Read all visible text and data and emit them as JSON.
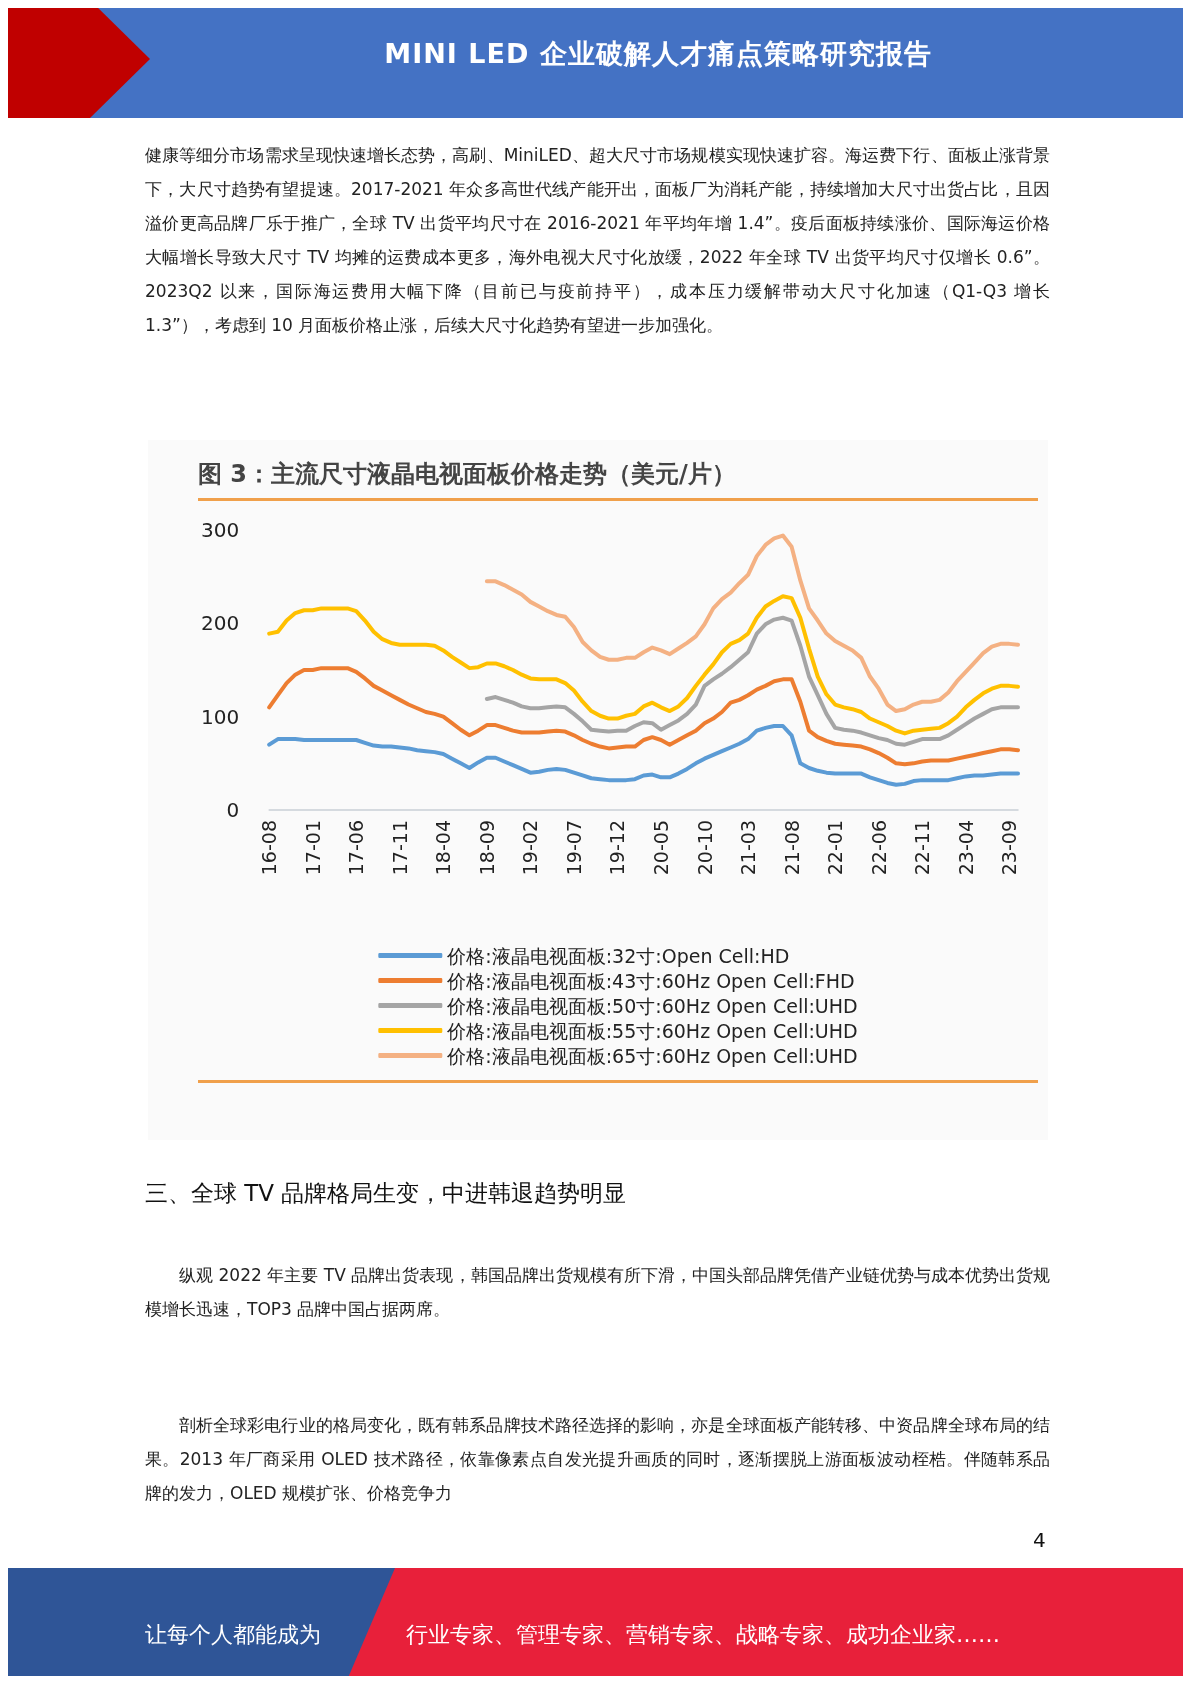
{
  "chart_data": {
    "type": "line",
    "title": "图 3：主流尺寸液晶电视面板价格走势（美元/片）",
    "categories": [
      "16-08",
      null,
      null,
      null,
      null,
      "17-01",
      null,
      null,
      null,
      null,
      "17-06",
      null,
      null,
      null,
      null,
      "17-11",
      null,
      null,
      null,
      null,
      "18-04",
      null,
      null,
      null,
      null,
      "18-09",
      null,
      null,
      null,
      null,
      "19-02",
      null,
      null,
      null,
      null,
      "19-07",
      null,
      null,
      null,
      null,
      "19-12",
      null,
      null,
      null,
      null,
      "20-05",
      null,
      null,
      null,
      null,
      "20-10",
      null,
      null,
      null,
      null,
      "21-03",
      null,
      null,
      null,
      null,
      "21-08",
      null,
      null,
      null,
      null,
      "22-01",
      null,
      null,
      null,
      null,
      "22-06",
      null,
      null,
      null,
      null,
      "22-11",
      null,
      null,
      null,
      null,
      "23-04",
      null,
      null,
      null,
      null,
      "23-09",
      null
    ],
    "series": [
      {
        "name": "价格:液晶电视面板:32寸:Open Cell:HD",
        "color": "#5b9bd5",
        "values": [
          70,
          76,
          76,
          76,
          75,
          75,
          75,
          75,
          75,
          75,
          75,
          72,
          69,
          68,
          68,
          67,
          66,
          64,
          63,
          62,
          60,
          55,
          50,
          45,
          51,
          56,
          56,
          52,
          48,
          44,
          40,
          41,
          43,
          44,
          43,
          40,
          37,
          34,
          33,
          32,
          32,
          32,
          33,
          37,
          38,
          35,
          35,
          39,
          44,
          50,
          55,
          59,
          63,
          67,
          71,
          76,
          85,
          88,
          90,
          90,
          80,
          50,
          45,
          42,
          40,
          39,
          39,
          39,
          39,
          35,
          32,
          29,
          27,
          28,
          31,
          32,
          32,
          32,
          32,
          34,
          36,
          37,
          37,
          38,
          39,
          39,
          39
        ]
      },
      {
        "name": "价格:液晶电视面板:43寸:60Hz Open Cell:FHD",
        "color": "#ed7d31",
        "values": [
          110,
          123,
          136,
          145,
          150,
          150,
          152,
          152,
          152,
          152,
          148,
          141,
          133,
          128,
          123,
          118,
          113,
          109,
          105,
          103,
          100,
          93,
          86,
          80,
          85,
          91,
          91,
          88,
          85,
          83,
          83,
          83,
          84,
          85,
          84,
          80,
          75,
          71,
          68,
          66,
          67,
          68,
          68,
          75,
          78,
          75,
          70,
          75,
          80,
          85,
          93,
          98,
          105,
          115,
          118,
          123,
          129,
          133,
          138,
          140,
          140,
          116,
          85,
          78,
          74,
          71,
          70,
          69,
          68,
          65,
          61,
          56,
          50,
          49,
          50,
          52,
          53,
          53,
          53,
          55,
          57,
          59,
          61,
          63,
          65,
          65,
          64
        ]
      },
      {
        "name": "价格:液晶电视面板:50寸:60Hz Open Cell:UHD",
        "color": "#a5a5a5",
        "values": [
          null,
          null,
          null,
          null,
          null,
          null,
          null,
          null,
          null,
          null,
          null,
          null,
          null,
          null,
          null,
          null,
          null,
          null,
          null,
          null,
          null,
          null,
          null,
          null,
          null,
          119,
          121,
          118,
          115,
          111,
          109,
          109,
          110,
          111,
          110,
          103,
          95,
          86,
          85,
          84,
          85,
          85,
          90,
          94,
          93,
          86,
          91,
          96,
          103,
          113,
          133,
          140,
          146,
          153,
          161,
          169,
          189,
          199,
          204,
          206,
          203,
          176,
          143,
          123,
          103,
          88,
          86,
          85,
          83,
          80,
          77,
          75,
          71,
          70,
          73,
          76,
          76,
          76,
          80,
          86,
          92,
          98,
          103,
          108,
          110,
          110,
          110
        ]
      },
      {
        "name": "价格:液晶电视面板:55寸:60Hz Open Cell:UHD",
        "color": "#ffc000",
        "values": [
          189,
          191,
          203,
          211,
          214,
          214,
          216,
          216,
          216,
          216,
          213,
          203,
          191,
          183,
          179,
          177,
          177,
          177,
          177,
          176,
          171,
          164,
          158,
          152,
          153,
          157,
          157,
          154,
          150,
          145,
          141,
          140,
          140,
          140,
          136,
          128,
          116,
          106,
          101,
          98,
          98,
          101,
          103,
          111,
          115,
          110,
          106,
          111,
          120,
          133,
          145,
          156,
          169,
          178,
          182,
          189,
          206,
          218,
          224,
          229,
          227,
          206,
          173,
          143,
          124,
          113,
          110,
          108,
          105,
          98,
          94,
          90,
          85,
          82,
          85,
          86,
          87,
          88,
          93,
          100,
          110,
          118,
          125,
          130,
          133,
          133,
          132
        ]
      },
      {
        "name": "价格:液晶电视面板:65寸:60Hz Open Cell:UHD",
        "color": "#f4b183",
        "values": [
          null,
          null,
          null,
          null,
          null,
          null,
          null,
          null,
          null,
          null,
          null,
          null,
          null,
          null,
          null,
          null,
          null,
          null,
          null,
          null,
          null,
          null,
          null,
          null,
          null,
          245,
          245,
          241,
          236,
          231,
          223,
          218,
          213,
          209,
          207,
          196,
          180,
          171,
          164,
          161,
          161,
          163,
          163,
          169,
          174,
          171,
          167,
          173,
          179,
          186,
          199,
          216,
          226,
          233,
          243,
          252,
          272,
          284,
          291,
          294,
          282,
          246,
          216,
          203,
          189,
          181,
          176,
          171,
          163,
          143,
          130,
          113,
          106,
          108,
          113,
          116,
          116,
          118,
          126,
          138,
          148,
          158,
          168,
          175,
          178,
          178,
          177
        ]
      }
    ],
    "ylim": [
      0,
      300
    ],
    "yticks": [
      0,
      100,
      200,
      300
    ],
    "grid": false,
    "legend": "bottom",
    "marker": "none",
    "line_style": "solid",
    "annotations": [
      "MINI LED 企业破解人才痛点策略研究报告",
      "健康等细分市场需求呈现快速增长态势，高刷、MiniLED、超大尺寸市场规模实现快速扩容。海运费下行、面板止涨背景下，大尺寸趋势有望提速。2017-2021 年众多高世代线产能开出，面板厂为消耗产能，持续增加大尺寸出货占比，且因溢价更高品牌厂乐于推广，全球 TV 出货平均尺寸在 2016-2021 年平均年增 1.4”。疫后面板持续涨价、国际海运价格大幅增长导致大尺寸 TV 均摊的运费成本更多，海外电视大尺寸化放缓，2022 年全球 TV 出货平均尺寸仅增长 0.6”。2023Q2 以来，国际海运费用大幅下降（目前已与疫前持平），成本压力缓解带动大尺寸化加速（Q1-Q3 增长 1.3”），考虑到 10 月面板价格止涨，后续大尺寸化趋势有望进一步加强化。",
      "三、全球 TV 品牌格局生变，中进韩退趋势明显",
      "纵观 2022 年主要 TV 品牌出货表现，韩国品牌出货规模有所下滑，中国头部品牌凭借产业链优势与成本优势出货规模增长迅速，TOP3 品牌中国占据两席。",
      "剖析全球彩电行业的格局变化，既有韩系品牌技术路径选择的影响，亦是全球面板产能转移、中资品牌全球布局的结果。2013 年厂商采用 OLED 技术路径，依靠像素点自发光提升画质的同时，逐渐摆脱上游面板波动桎梏。伴随韩系品牌的发力，OLED 规模扩张、价格竞争力",
      "4",
      "让每个人都能成为",
      "行业专家、管理专家、营销专家、战略专家、成功企业家……"
    ]
  }
}
